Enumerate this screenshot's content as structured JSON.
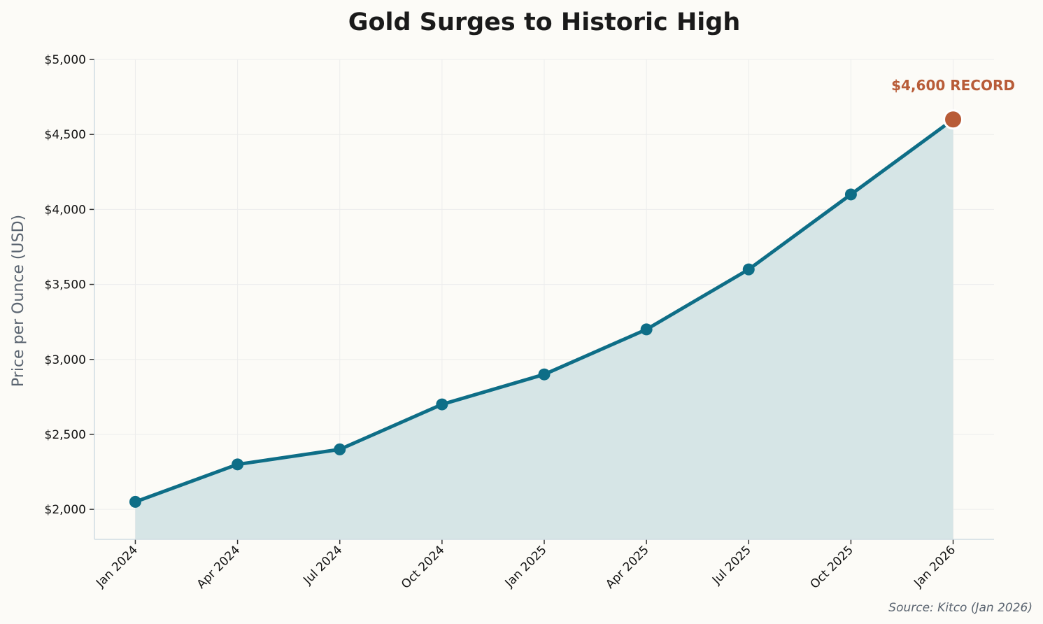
{
  "chart_data": {
    "type": "area",
    "title": "Gold Surges to Historic High",
    "xlabel": "",
    "ylabel": "Price per Ounce (USD)",
    "categories": [
      "Jan 2024",
      "Apr 2024",
      "Jul 2024",
      "Oct 2024",
      "Jan 2025",
      "Apr 2025",
      "Jul 2025",
      "Oct 2025",
      "Jan 2026"
    ],
    "series": [
      {
        "values": [
          2050,
          2300,
          2400,
          2700,
          2900,
          3200,
          3600,
          4100,
          4600
        ]
      }
    ],
    "ylim": [
      1800,
      5000
    ],
    "yticks": [
      2000,
      2500,
      3000,
      3500,
      4000,
      4500,
      5000
    ],
    "ytick_labels": [
      "$2,000",
      "$2,500",
      "$3,000",
      "$3,500",
      "$4,000",
      "$4,500",
      "$5,000"
    ],
    "grid": true,
    "annotation": {
      "text": "$4,600 RECORD",
      "category": "Jan 2026",
      "value": 4600
    },
    "source": "Source: Kitco (Jan 2026)",
    "colors": {
      "line": "#0e6e87",
      "fill": "#d6e5e6",
      "highlight": "#b85c38",
      "background": "#fcfbf7"
    }
  }
}
